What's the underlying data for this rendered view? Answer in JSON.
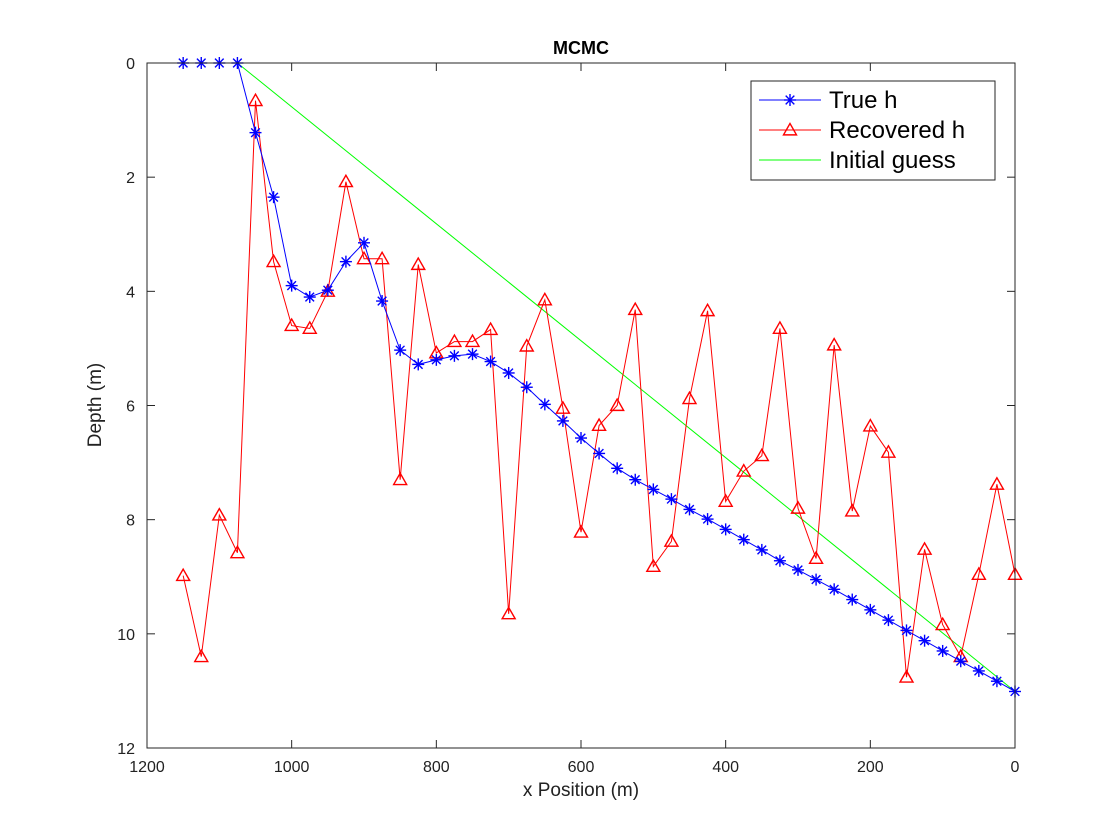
{
  "chart_data": {
    "type": "line",
    "title": "MCMC",
    "xlabel": "x Position (m)",
    "ylabel": "Depth (m)",
    "xlim": [
      1200,
      0
    ],
    "ylim": [
      0,
      12
    ],
    "x_reversed": true,
    "y_reversed": true,
    "xticks": [
      1200,
      1000,
      800,
      600,
      400,
      200,
      0
    ],
    "yticks": [
      0,
      2,
      4,
      6,
      8,
      10,
      12
    ],
    "grid": false,
    "legend_placement": "top-right",
    "series": [
      {
        "name": "True h",
        "color": "#0000ff",
        "marker": "asterisk",
        "x": [
          1150,
          1125,
          1100,
          1075,
          1050,
          1025,
          1000,
          975,
          950,
          925,
          900,
          875,
          850,
          825,
          800,
          775,
          750,
          725,
          700,
          675,
          650,
          625,
          600,
          575,
          550,
          525,
          500,
          475,
          450,
          425,
          400,
          375,
          350,
          325,
          300,
          275,
          250,
          225,
          200,
          175,
          150,
          125,
          100,
          75,
          50,
          25,
          0
        ],
        "y": [
          0,
          0,
          0,
          0,
          1.22,
          2.35,
          3.9,
          4.1,
          3.98,
          3.48,
          3.15,
          4.17,
          5.03,
          5.28,
          5.2,
          5.13,
          5.1,
          5.23,
          5.43,
          5.68,
          5.98,
          6.27,
          6.57,
          6.84,
          7.1,
          7.3,
          7.47,
          7.64,
          7.82,
          7.99,
          8.17,
          8.35,
          8.53,
          8.72,
          8.88,
          9.05,
          9.22,
          9.4,
          9.58,
          9.76,
          9.94,
          10.12,
          10.3,
          10.48,
          10.65,
          10.83,
          11.01
        ]
      },
      {
        "name": "Recovered h",
        "color": "#ff0000",
        "marker": "triangle",
        "x": [
          1150,
          1125,
          1100,
          1075,
          1050,
          1025,
          1000,
          975,
          950,
          925,
          900,
          875,
          850,
          825,
          800,
          775,
          750,
          725,
          700,
          675,
          650,
          625,
          600,
          575,
          550,
          525,
          500,
          475,
          450,
          425,
          400,
          375,
          350,
          325,
          300,
          275,
          250,
          225,
          200,
          175,
          150,
          125,
          100,
          75,
          50,
          25,
          0
        ],
        "y": [
          8.98,
          10.4,
          7.92,
          8.58,
          0.66,
          3.48,
          4.6,
          4.65,
          4.0,
          2.08,
          3.43,
          3.43,
          7.3,
          3.53,
          5.08,
          4.88,
          4.88,
          4.67,
          9.65,
          4.96,
          4.15,
          6.05,
          8.22,
          6.35,
          6.0,
          4.32,
          8.82,
          8.38,
          5.88,
          4.34,
          7.68,
          7.15,
          6.88,
          4.65,
          7.8,
          8.68,
          4.94,
          7.85,
          6.36,
          6.82,
          10.76,
          8.52,
          9.84,
          10.4,
          8.96,
          7.38,
          8.96
        ]
      },
      {
        "name": "Initial guess",
        "color": "#00ff00",
        "marker": "none",
        "x": [
          1075,
          0
        ],
        "y": [
          0,
          11.01
        ]
      }
    ]
  }
}
